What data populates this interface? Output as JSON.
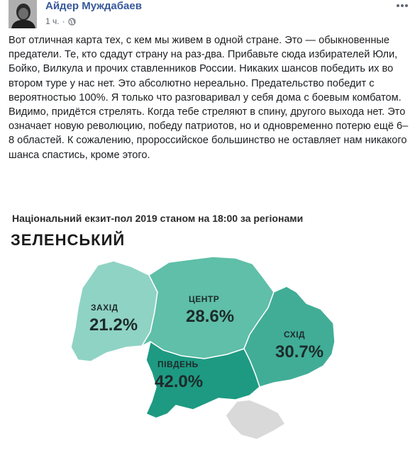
{
  "post": {
    "author": "Айдер Муждабаев",
    "time": "1 ч.",
    "privacy_icon": "globe-icon",
    "more_icon": "more-dots-icon",
    "text": "Вот отличная карта тех, с кем мы живем в одной стране. Это — обыкновенные предатели. Те, кто сдадут страну на раз-два. Прибавьте сюда избирателей Юли, Бойко, Вилкула и прочих ставленников России. Никаких шансов победить их во втором туре у нас нет. Это абсолютно нереально. Предательство победит с вероятностью 100%. Я только что разговаривал у себя дома с боевым комбатом. Видимо, придётся стрелять. Когда тебе стреляют в спину, другого выхода нет. Это означает новую революцию, победу патриотов, но и одновременно потерю ещё 6–8 областей. К сожалению, пророссийское большинство не оставляет нам никакого шанса спастись, кроме этого."
  },
  "infographic": {
    "title": "Національний екзит-пол 2019 станом на 18:00 за регіонами",
    "candidate": "ЗЕЛЕНСЬКИЙ",
    "regions": [
      {
        "key": "zahid",
        "name": "ЗАХІД",
        "value": "21.2%",
        "percent": 21.2,
        "color": "#8fd3c4"
      },
      {
        "key": "tsentr",
        "name": "ЦЕНТР",
        "value": "28.6%",
        "percent": 28.6,
        "color": "#5fbfa8"
      },
      {
        "key": "skhid",
        "name": "СХІД",
        "value": "30.7%",
        "percent": 30.7,
        "color": "#41ad97"
      },
      {
        "key": "pivden",
        "name": "ПІВДЕНЬ",
        "value": "42.0%",
        "percent": 42.0,
        "color": "#1e9a82"
      }
    ],
    "crimea_color": "#d9d9d9"
  }
}
